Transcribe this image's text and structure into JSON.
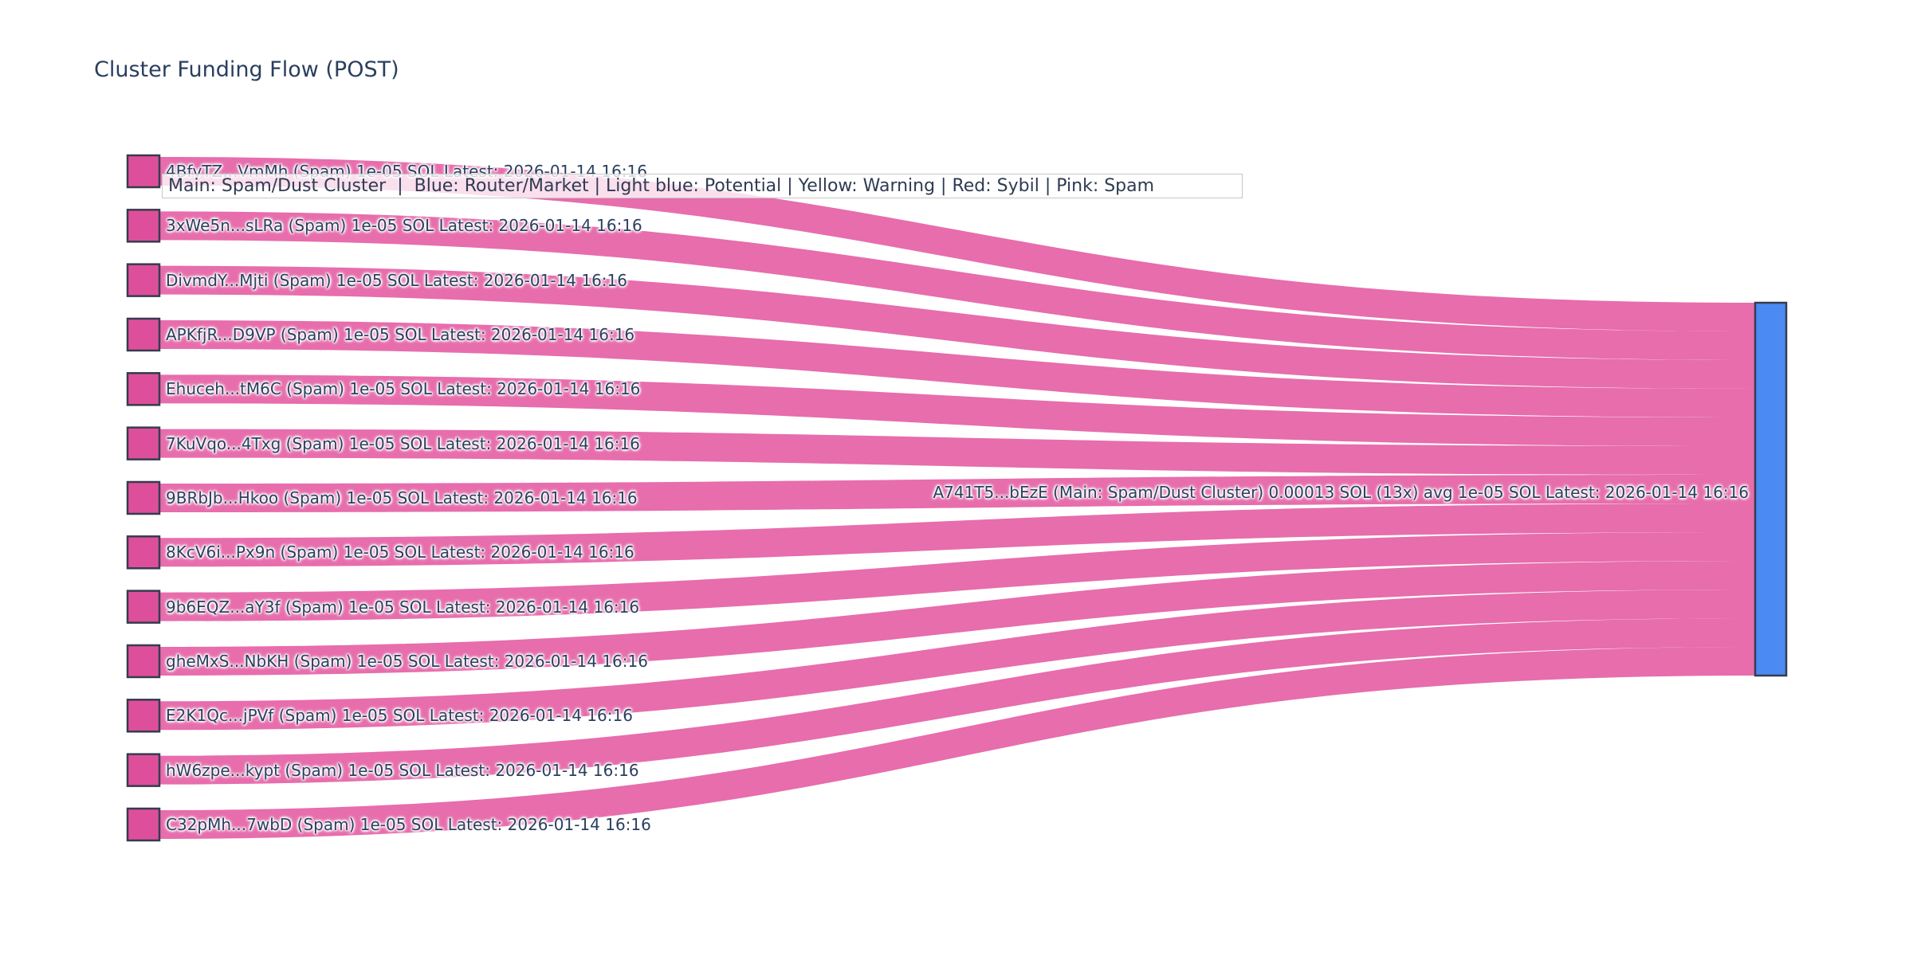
{
  "title": "Cluster Funding Flow (POST)",
  "annotation": {
    "legend_text": "Main: Spam/Dust Cluster  |  Blue: Router/Market | Light blue: Potential | Yellow: Warning | Red: Sybil | Pink: Spam"
  },
  "colors": {
    "source_node_fill": "#de4f9b",
    "link_fill": "#e561a5",
    "target_node_fill": "#4b8af2",
    "node_border": "#363c4e",
    "label_text": "#2a3f5f",
    "title_text": "#2a3f5f",
    "annotation_border": "#c7c7c7"
  },
  "chart_data": {
    "type": "sankey",
    "title": "Cluster Funding Flow (POST)",
    "unit": "SOL",
    "legend_note": "Main: Spam/Dust Cluster  |  Blue: Router/Market | Light blue: Potential | Yellow: Warning | Red: Sybil | Pink: Spam",
    "target": {
      "id": "A741T5...bEzE",
      "label": "A741T5...bEzE (Main: Spam/Dust Cluster) 0.00013 SOL (13x) avg 1e-05 SOL Latest: 2026-01-14 16:16",
      "cluster": "Main: Spam/Dust Cluster",
      "total_sol": 0.00013,
      "tx_count": "13x",
      "avg_sol": "1e-05",
      "latest": "2026-01-14 16:16"
    },
    "links": [
      {
        "source_id": "4BfvTZ...VmMh",
        "source_label": "4BfvTZ...VmMh (Spam) 1e-05 SOL Latest: 2026-01-14 16:16",
        "category": "Spam",
        "value_sol": 1e-05,
        "latest": "2026-01-14 16:16"
      },
      {
        "source_id": "3xWe5n...sLRa",
        "source_label": "3xWe5n...sLRa (Spam) 1e-05 SOL Latest: 2026-01-14 16:16",
        "category": "Spam",
        "value_sol": 1e-05,
        "latest": "2026-01-14 16:16"
      },
      {
        "source_id": "DivmdY...Mjti",
        "source_label": "DivmdY...Mjti (Spam) 1e-05 SOL Latest: 2026-01-14 16:16",
        "category": "Spam",
        "value_sol": 1e-05,
        "latest": "2026-01-14 16:16"
      },
      {
        "source_id": "APKfjR...D9VP",
        "source_label": "APKfjR...D9VP (Spam) 1e-05 SOL Latest: 2026-01-14 16:16",
        "category": "Spam",
        "value_sol": 1e-05,
        "latest": "2026-01-14 16:16"
      },
      {
        "source_id": "Ehuceh...tM6C",
        "source_label": "Ehuceh...tM6C (Spam) 1e-05 SOL Latest: 2026-01-14 16:16",
        "category": "Spam",
        "value_sol": 1e-05,
        "latest": "2026-01-14 16:16"
      },
      {
        "source_id": "7KuVqo...4Txg",
        "source_label": "7KuVqo...4Txg (Spam) 1e-05 SOL Latest: 2026-01-14 16:16",
        "category": "Spam",
        "value_sol": 1e-05,
        "latest": "2026-01-14 16:16"
      },
      {
        "source_id": "9BRbJb...Hkoo",
        "source_label": "9BRbJb...Hkoo (Spam) 1e-05 SOL Latest: 2026-01-14 16:16",
        "category": "Spam",
        "value_sol": 1e-05,
        "latest": "2026-01-14 16:16"
      },
      {
        "source_id": "8KcV6i...Px9n",
        "source_label": "8KcV6i...Px9n (Spam) 1e-05 SOL Latest: 2026-01-14 16:16",
        "category": "Spam",
        "value_sol": 1e-05,
        "latest": "2026-01-14 16:16"
      },
      {
        "source_id": "9b6EQZ...aY3f",
        "source_label": "9b6EQZ...aY3f (Spam) 1e-05 SOL Latest: 2026-01-14 16:16",
        "category": "Spam",
        "value_sol": 1e-05,
        "latest": "2026-01-14 16:16"
      },
      {
        "source_id": "gheMxS...NbKH",
        "source_label": "gheMxS...NbKH (Spam) 1e-05 SOL Latest: 2026-01-14 16:16",
        "category": "Spam",
        "value_sol": 1e-05,
        "latest": "2026-01-14 16:16"
      },
      {
        "source_id": "E2K1Qc...jPVf",
        "source_label": "E2K1Qc...jPVf (Spam) 1e-05 SOL Latest: 2026-01-14 16:16",
        "category": "Spam",
        "value_sol": 1e-05,
        "latest": "2026-01-14 16:16"
      },
      {
        "source_id": "hW6zpe...kypt",
        "source_label": "hW6zpe...kypt (Spam) 1e-05 SOL Latest: 2026-01-14 16:16",
        "category": "Spam",
        "value_sol": 1e-05,
        "latest": "2026-01-14 16:16"
      },
      {
        "source_id": "C32pMh...7wbD",
        "source_label": "C32pMh...7wbD (Spam) 1e-05 SOL Latest: 2026-01-14 16:16",
        "category": "Spam",
        "value_sol": 1e-05,
        "latest": "2026-01-14 16:16"
      }
    ]
  }
}
